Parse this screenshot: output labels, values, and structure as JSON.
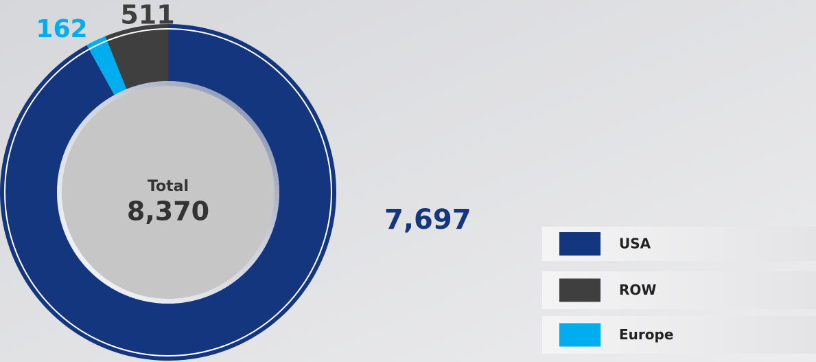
{
  "chart_data": {
    "type": "donut",
    "categories": [
      "USA",
      "ROW",
      "Europe"
    ],
    "values": [
      7697,
      511,
      162
    ],
    "value_labels": [
      "7,697",
      "511",
      "162"
    ],
    "colors": [
      "#13367f",
      "#3f3f3f",
      "#00adef"
    ],
    "center_title": "Total",
    "center_value": "8,370",
    "legend": "bottom-right"
  }
}
